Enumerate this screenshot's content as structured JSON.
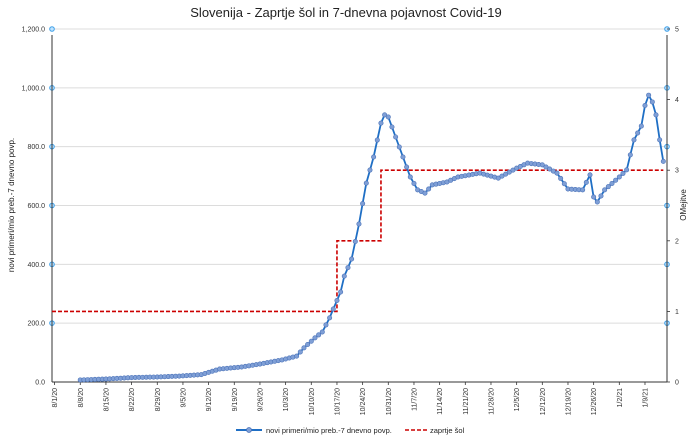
{
  "chart_data": {
    "type": "line",
    "title": "Slovenija - Zaprtje šol in 7-dnevna pojavnost Covid-19",
    "ylabel": "novi primeri/mio preb.-7 dnevno povp.",
    "y2label": "OMejitve",
    "ylim": [
      0,
      1200
    ],
    "y2lim": [
      0,
      5
    ],
    "yticks": [
      "0.0",
      "200.0",
      "400.0",
      "600.0",
      "800.0",
      "1,000.0",
      "1,200.0"
    ],
    "y2ticks": [
      "0",
      "1",
      "2",
      "3",
      "4",
      "5"
    ],
    "x_start": "8/1/20",
    "x_unit": "days since 8/1/20",
    "xlim": [
      0,
      166
    ],
    "xticks": [
      "8/1/20",
      "8/8/20",
      "8/15/20",
      "8/22/20",
      "8/29/20",
      "9/5/20",
      "9/12/20",
      "9/19/20",
      "9/26/20",
      "10/3/20",
      "10/10/20",
      "10/17/20",
      "10/24/20",
      "10/31/20",
      "11/7/20",
      "11/14/20",
      "11/21/20",
      "11/28/20",
      "12/5/20",
      "12/12/20",
      "12/19/20",
      "12/26/20",
      "1/2/21",
      "1/9/21"
    ],
    "grid": true,
    "legend_position": "bottom",
    "series": [
      {
        "name": "novi primeri/mio preb.-7 dnevno povp.",
        "axis": "left",
        "color": "#1f6fc5",
        "marker_color": "#7f9fd6",
        "points": [
          [
            7,
            7
          ],
          [
            14,
            10
          ],
          [
            21,
            15
          ],
          [
            28,
            17
          ],
          [
            34,
            20
          ],
          [
            40,
            25
          ],
          [
            45,
            44
          ],
          [
            51,
            51
          ],
          [
            56,
            61
          ],
          [
            62,
            75
          ],
          [
            66,
            88
          ],
          [
            68,
            116
          ],
          [
            71,
            150
          ],
          [
            73,
            170
          ],
          [
            75,
            218
          ],
          [
            76,
            248
          ],
          [
            78,
            306
          ],
          [
            79,
            360
          ],
          [
            81,
            418
          ],
          [
            83,
            537
          ],
          [
            85,
            676
          ],
          [
            87,
            765
          ],
          [
            89,
            880
          ],
          [
            90,
            908
          ],
          [
            91,
            901
          ],
          [
            93,
            833
          ],
          [
            95,
            765
          ],
          [
            97,
            697
          ],
          [
            99,
            653
          ],
          [
            101,
            642
          ],
          [
            103,
            670
          ],
          [
            107,
            680
          ],
          [
            110,
            697
          ],
          [
            116,
            710
          ],
          [
            121,
            693
          ],
          [
            126,
            727
          ],
          [
            129,
            744
          ],
          [
            133,
            738
          ],
          [
            137,
            710
          ],
          [
            140,
            656
          ],
          [
            144,
            653
          ],
          [
            146,
            704
          ],
          [
            147,
            629
          ],
          [
            148,
            612
          ],
          [
            150,
            653
          ],
          [
            154,
            697
          ],
          [
            156,
            721
          ],
          [
            158,
            823
          ],
          [
            160,
            870
          ],
          [
            161,
            940
          ],
          [
            162,
            975
          ],
          [
            163,
            952
          ],
          [
            164,
            908
          ],
          [
            165,
            823
          ],
          [
            166,
            750
          ]
        ]
      },
      {
        "name": "zaprtje šol",
        "axis": "right",
        "color": "#cc0000",
        "style": "dashed-step",
        "steps": [
          [
            0,
            1
          ],
          [
            77,
            2
          ],
          [
            89,
            3
          ],
          [
            166,
            3
          ]
        ]
      }
    ]
  }
}
